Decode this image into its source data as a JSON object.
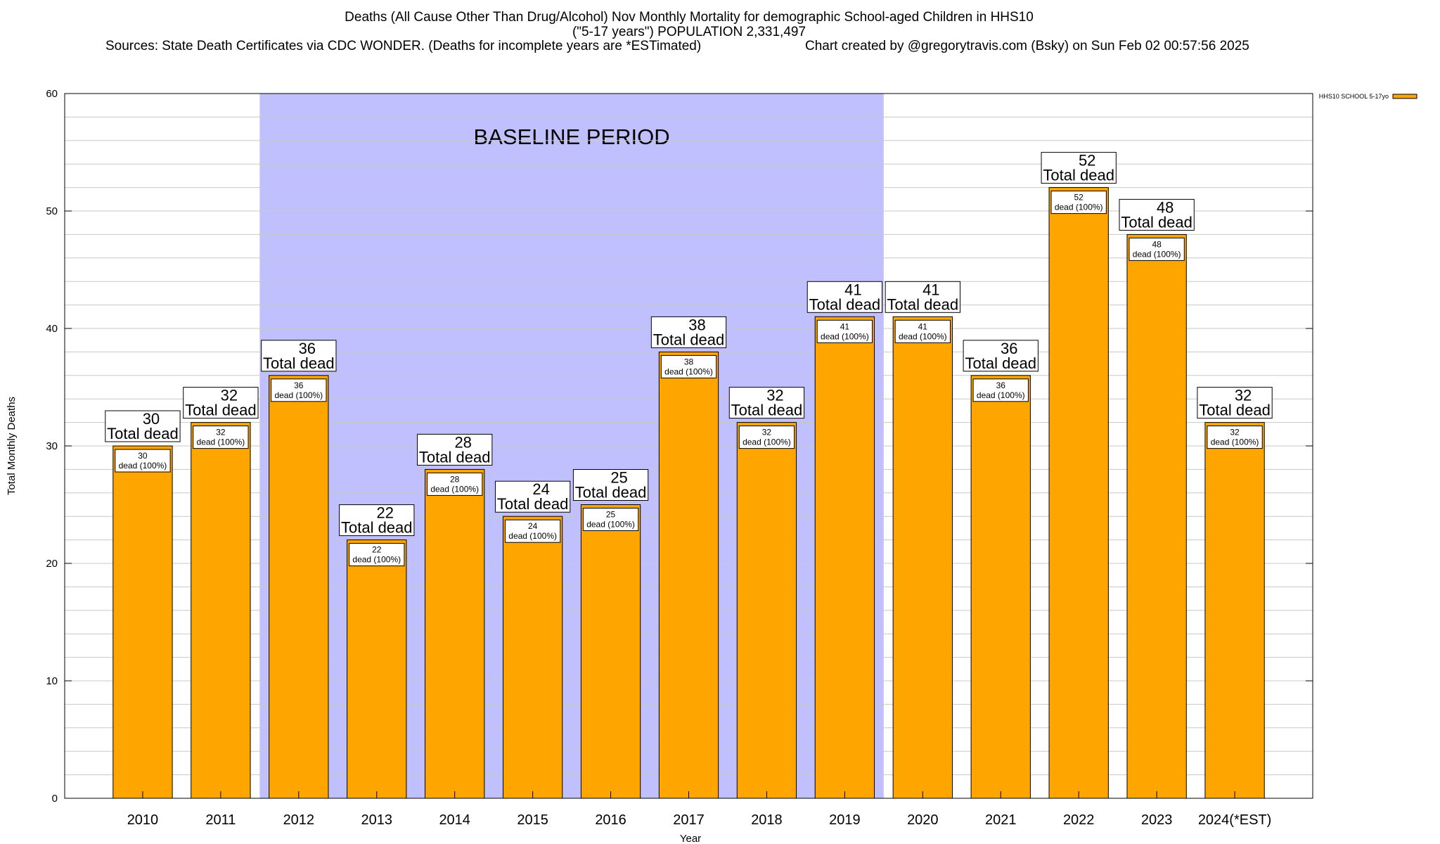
{
  "title": {
    "line1": "Deaths (All Cause Other Than Drug/Alcohol) Nov Monthly Mortality for demographic School-aged Children in HHS10",
    "line2": "(\"5-17 years\") POPULATION 2,331,497",
    "sources": "Sources: State Death Certificates via CDC WONDER. (Deaths for incomplete years are *ESTimated)",
    "credit": "Chart created by @gregorytravis.com (Bsky) on Sun Feb 02 00:57:56 2025"
  },
  "chart_data": {
    "type": "bar",
    "categories": [
      "2010",
      "2011",
      "2012",
      "2013",
      "2014",
      "2015",
      "2016",
      "2017",
      "2018",
      "2019",
      "2020",
      "2021",
      "2022",
      "2023",
      "2024(*EST)"
    ],
    "series": [
      {
        "name": "HHS10 SCHOOL 5-17yo",
        "values": [
          30,
          32,
          36,
          22,
          28,
          24,
          25,
          38,
          32,
          41,
          41,
          36,
          52,
          48,
          32
        ],
        "color": "#ffa500"
      }
    ],
    "bar_label_suffix": "Total dead",
    "inner_label_suffix": "dead (100%)",
    "xlabel": "Year",
    "ylabel": "Total Monthly Deaths",
    "ylim": [
      0,
      60
    ],
    "yticks": [
      0,
      10,
      20,
      30,
      40,
      50,
      60
    ],
    "grid": true,
    "legend": "top-right",
    "baseline": {
      "label": "BASELINE PERIOD",
      "from": "2012",
      "to": "2019",
      "color": "#c0c0ff"
    }
  }
}
